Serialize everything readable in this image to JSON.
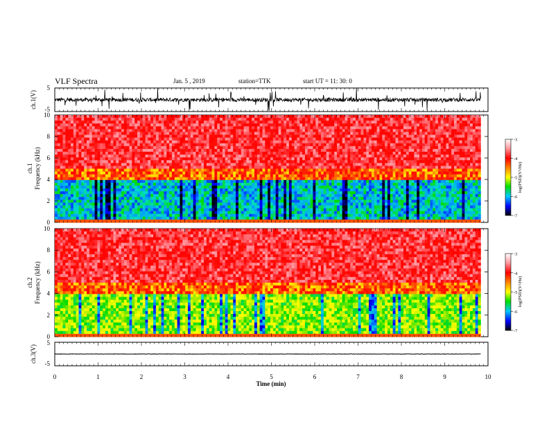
{
  "header": {
    "title": "VLF Spectra",
    "date": "Jan. 5 , 2019",
    "station": "station=TTK",
    "start": "start UT =  11: 30: 0"
  },
  "chart_data": [
    {
      "type": "line",
      "name": "ch1-waveform",
      "ylabel": "ch.1(V)",
      "ylim": [
        -5,
        5
      ],
      "yticks": [
        "5",
        "-5"
      ],
      "xlim": [
        0,
        10
      ],
      "trace_color": "#000000",
      "baseline": 0
    },
    {
      "type": "heatmap",
      "name": "ch1-spectrogram",
      "ylabel_line1": "ch.1",
      "ylabel_line2": "Frequency (kHz)",
      "ylim": [
        0,
        10
      ],
      "yticks": [
        "0",
        "2",
        "4",
        "6",
        "8",
        "10"
      ],
      "xlim": [
        0,
        9.83
      ],
      "colorbar": {
        "label": "log(PSD)(V²/Hz)",
        "ticks": [
          "-3",
          "-4",
          "-5",
          "-6",
          "-7"
        ],
        "range": [
          -7,
          -3
        ]
      }
    },
    {
      "type": "heatmap",
      "name": "ch2-spectrogram",
      "ylabel_line1": "ch.2",
      "ylabel_line2": "Frequency (kHz)",
      "ylim": [
        0,
        10
      ],
      "yticks": [
        "0",
        "2",
        "4",
        "6",
        "8",
        "10"
      ],
      "xlim": [
        0,
        9.83
      ],
      "colorbar": {
        "label": "log(PSD)(V²/Hz)",
        "ticks": [
          "-3",
          "-4",
          "-5",
          "-6",
          "-7"
        ],
        "range": [
          -7,
          -3
        ]
      }
    },
    {
      "type": "line",
      "name": "ch3-waveform",
      "ylabel": "ch.3(V)",
      "ylim": [
        -5,
        5
      ],
      "yticks": [
        "5",
        "-5"
      ],
      "xlim": [
        0,
        10
      ],
      "trace_color": "#000000",
      "baseline": 0
    }
  ],
  "xaxis": {
    "label": "Time (min)",
    "ticks": [
      "0",
      "1",
      "2",
      "3",
      "4",
      "5",
      "6",
      "7",
      "8",
      "9",
      "10"
    ],
    "range": [
      0,
      10
    ]
  }
}
